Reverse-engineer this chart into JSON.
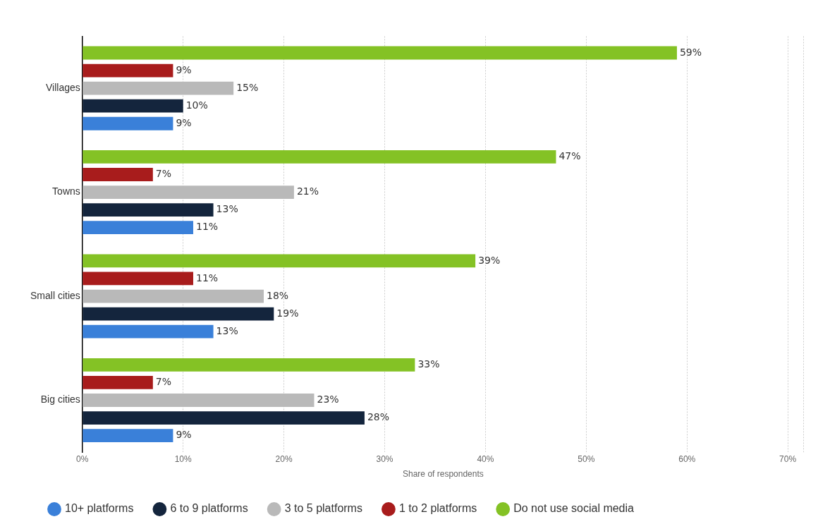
{
  "chart_data": {
    "type": "bar",
    "orientation": "horizontal",
    "categories": [
      "Villages",
      "Towns",
      "Small cities",
      "Big cities"
    ],
    "series": [
      {
        "name": "10+ platforms",
        "color": "#3a80d9",
        "values": [
          9,
          11,
          13,
          9
        ],
        "value_labels": [
          "9%",
          "11%",
          "13%",
          "9%"
        ]
      },
      {
        "name": "6 to 9 platforms",
        "color": "#14253d",
        "values": [
          10,
          13,
          19,
          28
        ],
        "value_labels": [
          "10%",
          "13%",
          "19%",
          "28%"
        ]
      },
      {
        "name": "3 to 5 platforms",
        "color": "#b9b9b9",
        "values": [
          15,
          21,
          18,
          23
        ],
        "value_labels": [
          "15%",
          "21%",
          "18%",
          "23%"
        ]
      },
      {
        "name": "1 to 2 platforms",
        "color": "#a81c1c",
        "values": [
          9,
          7,
          11,
          7
        ],
        "value_labels": [
          "9%",
          "7%",
          "11%",
          "7%"
        ]
      },
      {
        "name": "Do not use social media",
        "color": "#84c225",
        "values": [
          59,
          47,
          39,
          33
        ],
        "value_labels": [
          "59%",
          "47%",
          "39%",
          "33%"
        ]
      }
    ],
    "xlim": [
      0,
      71.6
    ],
    "xticks": [
      {
        "value": 0,
        "label": "0%"
      },
      {
        "value": 10,
        "label": "10%"
      },
      {
        "value": 20,
        "label": "20%"
      },
      {
        "value": 30,
        "label": "30%"
      },
      {
        "value": 40,
        "label": "40%"
      },
      {
        "value": 50,
        "label": "50%"
      },
      {
        "value": 60,
        "label": "60%"
      },
      {
        "value": 70,
        "label": "70%"
      }
    ],
    "xlabel": "Share of respondents",
    "grid": "x",
    "legend": "bottom left"
  }
}
